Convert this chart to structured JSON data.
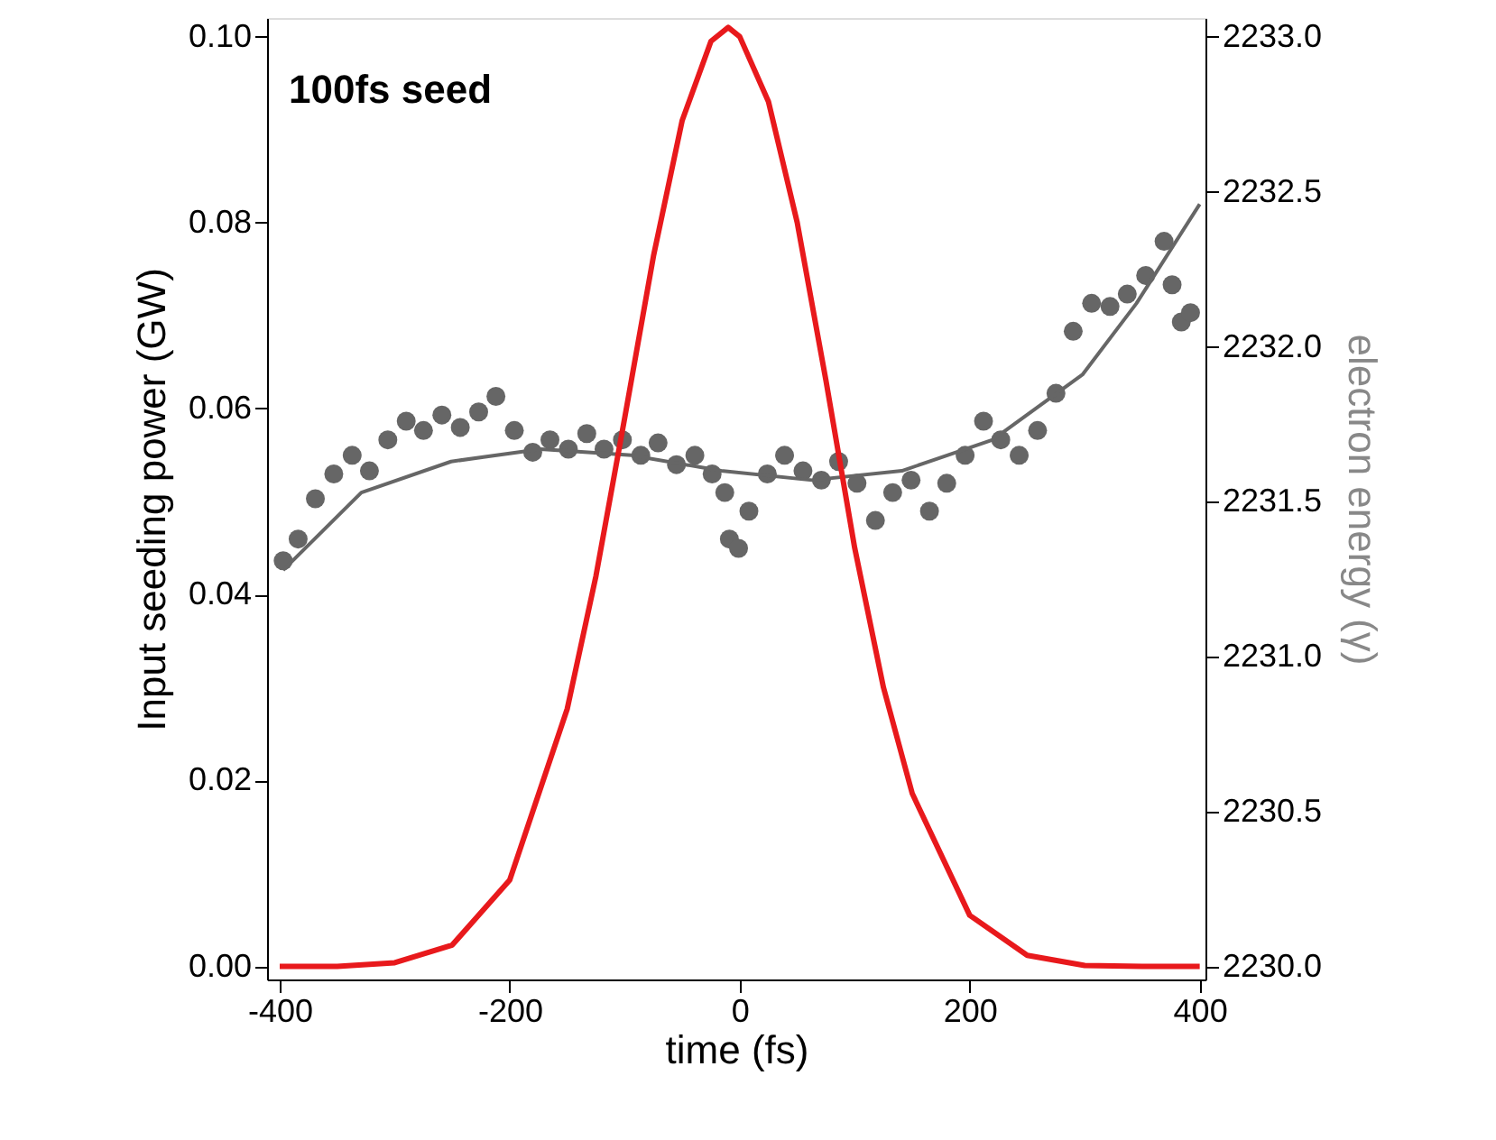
{
  "chart_data": {
    "type": "line",
    "xlabel": "time (fs)",
    "ylabel": "Input seeding power (GW)",
    "y2label": "electron energy (γ)",
    "annotations": [
      "100fs seed"
    ],
    "xlim": [
      -411,
      405
    ],
    "xticks": [
      -400,
      -200,
      0,
      200,
      400
    ],
    "ylim": [
      -0.0014,
      0.102
    ],
    "yticks": [
      {
        "value": 0,
        "label": "0.00"
      },
      {
        "value": 0.02,
        "label": "0.02"
      },
      {
        "value": 0.04,
        "label": "0.04"
      },
      {
        "value": 0.06,
        "label": "0.06"
      },
      {
        "value": 0.08,
        "label": "0.08"
      },
      {
        "value": 0.1,
        "label": "0.10"
      }
    ],
    "y2lim": [
      2229.96,
      2233.06
    ],
    "y2ticks": [
      {
        "value": 2230,
        "label": "2230.0"
      },
      {
        "value": 2230.5,
        "label": "2230.5"
      },
      {
        "value": 2231,
        "label": "2231.0"
      },
      {
        "value": 2231.5,
        "label": "2231.5"
      },
      {
        "value": 2232,
        "label": "2232.0"
      },
      {
        "value": 2232.5,
        "label": "2232.5"
      },
      {
        "value": 2233,
        "label": "2233.0"
      }
    ],
    "grid": false,
    "series": [
      {
        "type": "scatter",
        "axis": "y2",
        "color": "#666666",
        "marker": "circle",
        "x": [
          -397,
          -384,
          -369,
          -353,
          -337,
          -322,
          -306,
          -290,
          -275,
          -259,
          -243,
          -227,
          -212,
          -196,
          -180,
          -165,
          -149,
          -133,
          -118,
          -102,
          -86,
          -71,
          -55,
          -39,
          -24,
          -13,
          -9,
          -1,
          8,
          24,
          39,
          55,
          71,
          86,
          102,
          118,
          133,
          149,
          165,
          180,
          196,
          212,
          227,
          243,
          259,
          275,
          290,
          306,
          322,
          337,
          353,
          369,
          376,
          384,
          392
        ],
        "values": [
          2231.31,
          2231.38,
          2231.51,
          2231.59,
          2231.65,
          2231.6,
          2231.7,
          2231.76,
          2231.73,
          2231.78,
          2231.74,
          2231.79,
          2231.84,
          2231.73,
          2231.66,
          2231.7,
          2231.67,
          2231.72,
          2231.67,
          2231.7,
          2231.65,
          2231.69,
          2231.62,
          2231.65,
          2231.59,
          2231.53,
          2231.38,
          2231.35,
          2231.47,
          2231.59,
          2231.65,
          2231.6,
          2231.57,
          2231.63,
          2231.56,
          2231.44,
          2231.53,
          2231.57,
          2231.47,
          2231.56,
          2231.65,
          2231.76,
          2231.7,
          2231.65,
          2231.73,
          2231.85,
          2232.05,
          2232.14,
          2232.13,
          2232.17,
          2232.23,
          2232.34,
          2232.2,
          2232.08,
          2232.11
        ]
      },
      {
        "type": "line",
        "axis": "y2",
        "color": "#666666",
        "line_style": "solid",
        "x": [
          -397,
          -329,
          -251,
          -173,
          -94,
          -16,
          63,
          141,
          220,
          298,
          345,
          400
        ],
        "values": [
          2231.28,
          2231.53,
          2231.63,
          2231.67,
          2231.65,
          2231.6,
          2231.57,
          2231.6,
          2231.7,
          2231.91,
          2232.14,
          2232.46
        ]
      },
      {
        "color": "#e8191c",
        "line_style": "solid",
        "x": [
          -400,
          -350,
          -300,
          -250,
          -200,
          -150,
          -125,
          -100,
          -75,
          -50,
          -25,
          -10,
          0,
          25,
          50,
          75,
          100,
          125,
          150,
          200,
          250,
          300,
          350,
          400
        ],
        "values": [
          0,
          0,
          0.0004,
          0.0023,
          0.0093,
          0.0277,
          0.042,
          0.059,
          0.0764,
          0.091,
          0.0995,
          0.101,
          0.1,
          0.093,
          0.08,
          0.063,
          0.045,
          0.03,
          0.0186,
          0.0055,
          0.0012,
          0.0001,
          0,
          0
        ]
      }
    ]
  }
}
